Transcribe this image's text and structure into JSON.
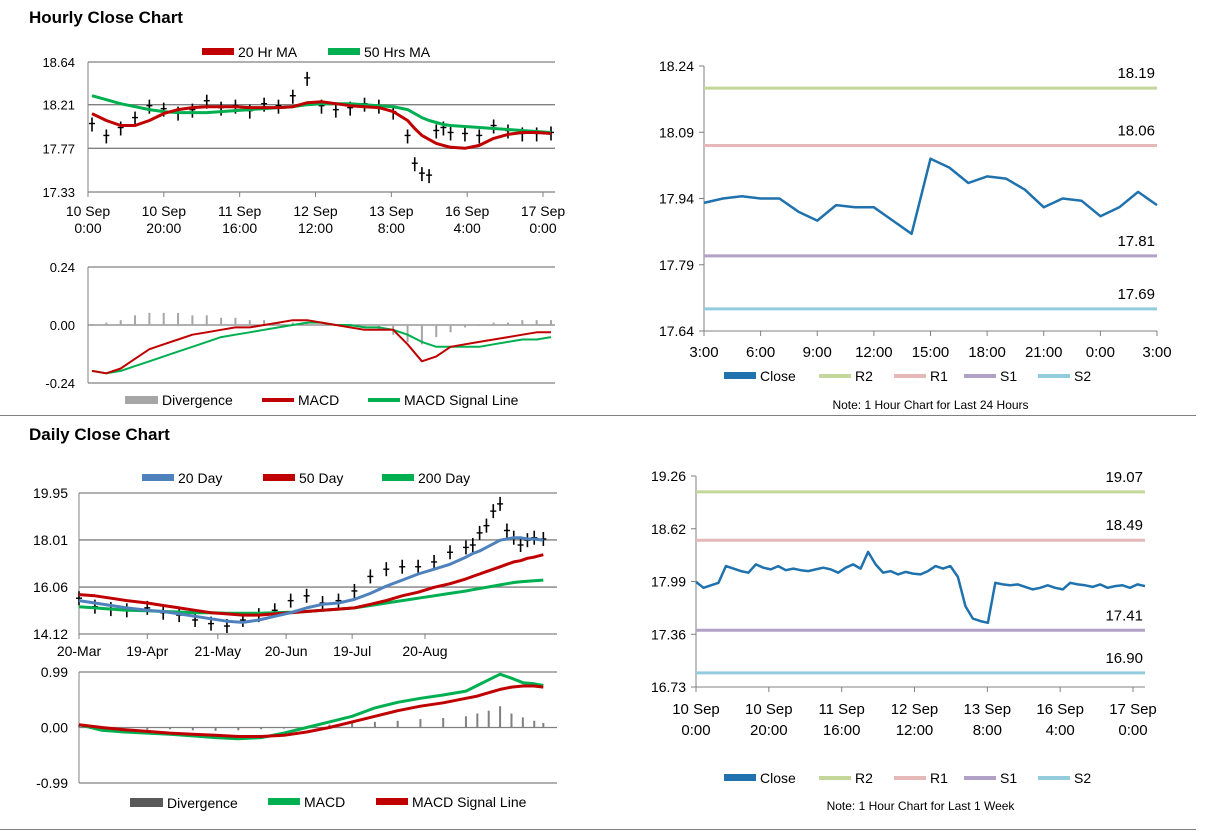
{
  "sections": {
    "hourly_title": "Hourly Close Chart",
    "daily_title": "Daily Close Chart"
  },
  "colors": {
    "red": "#c00000",
    "green": "#00b050",
    "blue": "#4f81bd",
    "close": "#1f72ad",
    "r2": "#c4d79b",
    "r1": "#e6b9b8",
    "s1": "#b2a1c7",
    "s2": "#93cddd",
    "grid": "#808080",
    "hist": "#a6a6a6",
    "candle": "#000000"
  },
  "chart_data": [
    {
      "id": "hourly_price",
      "type": "line",
      "title": "",
      "legend": [
        "20 Hr MA",
        "50 Hrs MA"
      ],
      "yticks": [
        "18.64",
        "18.21",
        "17.77",
        "17.33"
      ],
      "ylim": [
        17.33,
        18.64
      ],
      "xticks": [
        [
          "10 Sep",
          "0:00"
        ],
        [
          "10 Sep",
          "20:00"
        ],
        [
          "11 Sep",
          "16:00"
        ],
        [
          "12 Sep",
          "12:00"
        ],
        [
          "13 Sep",
          "8:00"
        ],
        [
          "16 Sep",
          "4:00"
        ],
        [
          "17 Sep",
          "0:00"
        ]
      ],
      "x": [
        0,
        4,
        8,
        12,
        16,
        20,
        24,
        28,
        32,
        36,
        40,
        44,
        48,
        52,
        56,
        60,
        64,
        68,
        72,
        76,
        80,
        84,
        88,
        90,
        92,
        94,
        96,
        98,
        100,
        104,
        108,
        112,
        116,
        120,
        124,
        128
      ],
      "close": [
        18.02,
        17.9,
        17.98,
        18.08,
        18.2,
        18.17,
        18.13,
        18.16,
        18.25,
        18.18,
        18.2,
        18.15,
        18.22,
        18.2,
        18.3,
        18.48,
        18.2,
        18.16,
        18.18,
        18.22,
        18.2,
        18.14,
        17.9,
        17.62,
        17.52,
        17.5,
        17.95,
        17.98,
        17.93,
        17.92,
        17.9,
        18.0,
        17.95,
        17.92,
        17.92,
        17.93
      ],
      "series": [
        {
          "name": "20 Hr MA",
          "values": [
            18.12,
            18.05,
            18.0,
            18.0,
            18.05,
            18.12,
            18.16,
            18.18,
            18.19,
            18.19,
            18.19,
            18.18,
            18.18,
            18.18,
            18.19,
            18.23,
            18.24,
            18.22,
            18.2,
            18.19,
            18.18,
            18.14,
            18.05,
            17.97,
            17.9,
            17.86,
            17.82,
            17.8,
            17.78,
            17.77,
            17.8,
            17.87,
            17.91,
            17.93,
            17.93,
            17.92
          ]
        },
        {
          "name": "50 Hrs MA",
          "values": [
            18.3,
            18.26,
            18.22,
            18.19,
            18.16,
            18.14,
            18.13,
            18.13,
            18.13,
            18.14,
            18.15,
            18.16,
            18.17,
            18.18,
            18.19,
            18.21,
            18.22,
            18.22,
            18.22,
            18.21,
            18.2,
            18.19,
            18.16,
            18.12,
            18.08,
            18.05,
            18.03,
            18.01,
            18.0,
            17.99,
            17.98,
            17.97,
            17.96,
            17.95,
            17.94,
            17.93
          ]
        }
      ]
    },
    {
      "id": "hourly_macd",
      "type": "line",
      "legend": [
        "Divergence",
        "MACD",
        "MACD Signal Line"
      ],
      "yticks": [
        "0.24",
        "0.00",
        "-0.24"
      ],
      "ylim": [
        -0.24,
        0.24
      ],
      "x": [
        0,
        4,
        8,
        12,
        16,
        20,
        24,
        28,
        32,
        36,
        40,
        44,
        48,
        52,
        56,
        60,
        64,
        68,
        72,
        76,
        80,
        84,
        88,
        92,
        96,
        100,
        104,
        108,
        112,
        116,
        120,
        124,
        128
      ],
      "divergence": [
        0.0,
        0.01,
        0.02,
        0.04,
        0.05,
        0.05,
        0.05,
        0.04,
        0.04,
        0.03,
        0.03,
        0.02,
        0.02,
        0.01,
        0.01,
        0.01,
        0.0,
        0.0,
        -0.01,
        -0.01,
        -0.02,
        -0.04,
        -0.07,
        -0.08,
        -0.05,
        -0.03,
        -0.01,
        0.0,
        0.01,
        0.01,
        0.02,
        0.02,
        0.02
      ],
      "series": [
        {
          "name": "MACD",
          "values": [
            -0.19,
            -0.2,
            -0.18,
            -0.14,
            -0.1,
            -0.08,
            -0.06,
            -0.04,
            -0.03,
            -0.02,
            -0.01,
            -0.01,
            0.0,
            0.01,
            0.02,
            0.02,
            0.01,
            0.0,
            -0.01,
            -0.02,
            -0.02,
            -0.02,
            -0.08,
            -0.15,
            -0.13,
            -0.09,
            -0.08,
            -0.07,
            -0.06,
            -0.05,
            -0.04,
            -0.03,
            -0.03
          ]
        },
        {
          "name": "MACD Signal Line",
          "values": [
            -0.19,
            -0.2,
            -0.19,
            -0.17,
            -0.15,
            -0.13,
            -0.11,
            -0.09,
            -0.07,
            -0.05,
            -0.04,
            -0.03,
            -0.02,
            -0.01,
            0.0,
            0.01,
            0.01,
            0.0,
            0.0,
            -0.01,
            -0.01,
            -0.02,
            -0.04,
            -0.07,
            -0.09,
            -0.09,
            -0.09,
            -0.09,
            -0.08,
            -0.07,
            -0.06,
            -0.06,
            -0.05
          ]
        }
      ]
    },
    {
      "id": "hourly_24h",
      "type": "line",
      "note": "Note: 1 Hour Chart for Last 24 Hours",
      "yticks": [
        "18.24",
        "18.09",
        "17.94",
        "17.79",
        "17.64"
      ],
      "ylim": [
        17.64,
        18.24
      ],
      "xticks": [
        "3:00",
        "6:00",
        "9:00",
        "12:00",
        "15:00",
        "18:00",
        "21:00",
        "0:00",
        "3:00"
      ],
      "xlim": [
        3,
        27
      ],
      "x": [
        3,
        4,
        5,
        6,
        7,
        8,
        9,
        10,
        11,
        12,
        13,
        14,
        15,
        16,
        17,
        18,
        19,
        20,
        21,
        22,
        23,
        24,
        25,
        26,
        27
      ],
      "close": [
        17.93,
        17.94,
        17.945,
        17.94,
        17.94,
        17.91,
        17.89,
        17.925,
        17.92,
        17.92,
        17.89,
        17.86,
        18.03,
        18.01,
        17.975,
        17.99,
        17.985,
        17.96,
        17.92,
        17.94,
        17.935,
        17.9,
        17.92,
        17.955,
        17.925
      ],
      "levels": [
        {
          "name": "R2",
          "value": 18.19,
          "label": "18.19"
        },
        {
          "name": "R1",
          "value": 18.06,
          "label": "18.06"
        },
        {
          "name": "S1",
          "value": 17.81,
          "label": "17.81"
        },
        {
          "name": "S2",
          "value": 17.69,
          "label": "17.69"
        }
      ],
      "legend": [
        "Close",
        "R2",
        "R1",
        "S1",
        "S2"
      ]
    },
    {
      "id": "daily_price",
      "type": "line",
      "legend": [
        "20 Day",
        "50 Day",
        "200 Day"
      ],
      "yticks": [
        "19.95",
        "18.01",
        "16.06",
        "14.12"
      ],
      "ylim": [
        14.12,
        19.95
      ],
      "xticks": [
        "20-Mar",
        "19-Apr",
        "21-May",
        "20-Jun",
        "19-Jul",
        "20-Aug"
      ],
      "x": [
        0,
        7,
        14,
        21,
        30,
        37,
        44,
        51,
        58,
        65,
        72,
        79,
        86,
        93,
        100,
        107,
        114,
        121,
        128,
        135,
        142,
        149,
        156,
        163,
        170,
        173,
        176,
        179,
        182,
        185,
        188,
        191,
        194,
        197,
        200,
        204
      ],
      "close": [
        15.6,
        15.25,
        15.15,
        15.1,
        15.2,
        15.0,
        14.9,
        14.7,
        14.55,
        14.45,
        14.7,
        14.9,
        15.1,
        15.5,
        15.7,
        15.4,
        15.5,
        15.9,
        16.5,
        16.8,
        16.9,
        16.9,
        17.1,
        17.5,
        17.7,
        17.8,
        18.3,
        18.6,
        19.2,
        19.5,
        18.4,
        18.1,
        17.8,
        18.0,
        18.1,
        18.05
      ],
      "series": [
        {
          "name": "20 Day",
          "values": [
            15.5,
            15.4,
            15.3,
            15.2,
            15.1,
            15.05,
            14.95,
            14.85,
            14.75,
            14.65,
            14.6,
            14.7,
            14.85,
            15.0,
            15.2,
            15.35,
            15.4,
            15.55,
            15.8,
            16.1,
            16.35,
            16.6,
            16.8,
            17.0,
            17.3,
            17.45,
            17.55,
            17.7,
            17.85,
            18.0,
            18.05,
            18.1,
            18.1,
            18.05,
            18.05,
            18.0
          ]
        },
        {
          "name": "50 Day",
          "values": [
            15.75,
            15.7,
            15.6,
            15.5,
            15.4,
            15.3,
            15.2,
            15.1,
            15.0,
            14.95,
            14.9,
            14.9,
            14.95,
            15.0,
            15.05,
            15.1,
            15.15,
            15.2,
            15.35,
            15.5,
            15.7,
            15.85,
            16.05,
            16.2,
            16.4,
            16.5,
            16.6,
            16.7,
            16.8,
            16.9,
            17.0,
            17.1,
            17.15,
            17.25,
            17.3,
            17.4
          ]
        },
        {
          "name": "200 Day",
          "values": [
            15.25,
            15.2,
            15.15,
            15.1,
            15.08,
            15.05,
            15.03,
            15.0,
            15.0,
            14.98,
            14.98,
            14.98,
            15.0,
            15.02,
            15.05,
            15.1,
            15.15,
            15.2,
            15.3,
            15.4,
            15.5,
            15.6,
            15.7,
            15.8,
            15.9,
            15.95,
            16.0,
            16.05,
            16.1,
            16.15,
            16.2,
            16.25,
            16.28,
            16.3,
            16.32,
            16.35
          ]
        }
      ]
    },
    {
      "id": "daily_macd",
      "type": "line",
      "legend": [
        "Divergence",
        "MACD",
        "MACD Signal Line"
      ],
      "yticks": [
        "0.99",
        "0.00",
        "-0.99"
      ],
      "ylim": [
        -0.99,
        0.99
      ],
      "x": [
        0,
        10,
        20,
        30,
        40,
        50,
        60,
        70,
        80,
        90,
        100,
        110,
        120,
        130,
        140,
        150,
        160,
        170,
        175,
        180,
        185,
        190,
        195,
        200,
        204
      ],
      "divergence": [
        0.05,
        0.02,
        -0.02,
        -0.04,
        -0.03,
        -0.05,
        -0.06,
        -0.05,
        -0.03,
        -0.02,
        0.02,
        0.05,
        0.08,
        0.1,
        0.12,
        0.15,
        0.17,
        0.2,
        0.25,
        0.3,
        0.38,
        0.25,
        0.18,
        0.12,
        0.08
      ],
      "series": [
        {
          "name": "MACD",
          "values": [
            0.05,
            -0.05,
            -0.08,
            -0.1,
            -0.12,
            -0.15,
            -0.18,
            -0.2,
            -0.18,
            -0.1,
            0.0,
            0.1,
            0.2,
            0.35,
            0.45,
            0.52,
            0.58,
            0.65,
            0.75,
            0.85,
            0.95,
            0.88,
            0.8,
            0.78,
            0.75
          ]
        },
        {
          "name": "MACD Signal Line",
          "values": [
            0.05,
            0.0,
            -0.04,
            -0.07,
            -0.1,
            -0.12,
            -0.14,
            -0.16,
            -0.16,
            -0.14,
            -0.08,
            0.0,
            0.1,
            0.2,
            0.3,
            0.38,
            0.44,
            0.52,
            0.56,
            0.62,
            0.68,
            0.72,
            0.74,
            0.74,
            0.72
          ]
        }
      ]
    },
    {
      "id": "hourly_week",
      "type": "line",
      "note": "Note: 1 Hour Chart for Last 1 Week",
      "yticks": [
        "19.26",
        "18.62",
        "17.99",
        "17.36",
        "16.73"
      ],
      "ylim": [
        16.73,
        19.26
      ],
      "xticks": [
        [
          "10 Sep",
          "0:00"
        ],
        [
          "10 Sep",
          "20:00"
        ],
        [
          "11 Sep",
          "16:00"
        ],
        [
          "12 Sep",
          "12:00"
        ],
        [
          "13 Sep",
          "8:00"
        ],
        [
          "16 Sep",
          "4:00"
        ],
        [
          "17 Sep",
          "0:00"
        ]
      ],
      "xlim": [
        0,
        120
      ],
      "x": [
        0,
        2,
        4,
        6,
        8,
        10,
        12,
        14,
        16,
        18,
        20,
        22,
        24,
        26,
        28,
        30,
        32,
        34,
        36,
        38,
        40,
        42,
        44,
        46,
        48,
        50,
        52,
        54,
        56,
        58,
        60,
        62,
        64,
        66,
        68,
        70,
        72,
        74,
        76,
        78,
        80,
        82,
        84,
        86,
        88,
        90,
        92,
        94,
        96,
        98,
        100,
        102,
        104,
        106,
        108,
        110,
        112,
        114,
        116,
        118,
        120
      ],
      "close": [
        17.99,
        17.92,
        17.95,
        17.98,
        18.18,
        18.15,
        18.12,
        18.1,
        18.2,
        18.16,
        18.14,
        18.18,
        18.13,
        18.15,
        18.13,
        18.12,
        18.14,
        18.16,
        18.14,
        18.1,
        18.16,
        18.2,
        18.15,
        18.35,
        18.2,
        18.1,
        18.12,
        18.08,
        18.11,
        18.09,
        18.08,
        18.12,
        18.18,
        18.15,
        18.18,
        18.05,
        17.7,
        17.55,
        17.52,
        17.5,
        17.98,
        17.96,
        17.95,
        17.96,
        17.93,
        17.9,
        17.92,
        17.95,
        17.92,
        17.9,
        17.98,
        17.96,
        17.95,
        17.93,
        17.96,
        17.92,
        17.94,
        17.95,
        17.92,
        17.96,
        17.94
      ],
      "levels": [
        {
          "name": "R2",
          "value": 19.07,
          "label": "19.07"
        },
        {
          "name": "R1",
          "value": 18.49,
          "label": "18.49"
        },
        {
          "name": "S1",
          "value": 17.41,
          "label": "17.41"
        },
        {
          "name": "S2",
          "value": 16.9,
          "label": "16.90"
        }
      ],
      "legend": [
        "Close",
        "R2",
        "R1",
        "S1",
        "S2"
      ]
    }
  ]
}
